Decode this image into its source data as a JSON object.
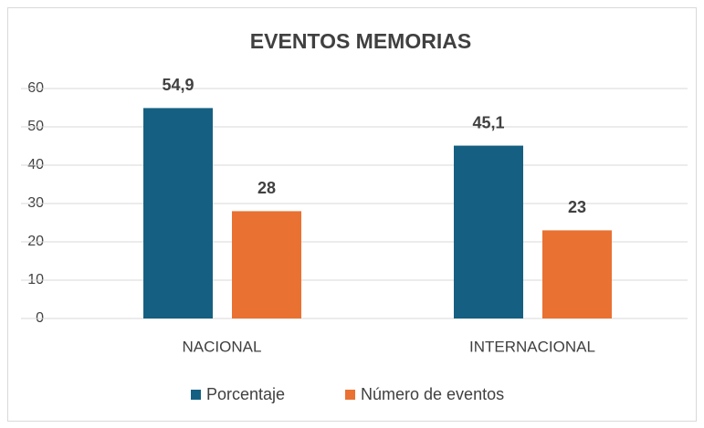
{
  "chart_data": {
    "type": "bar",
    "title": "EVENTOS MEMORIAS",
    "categories": [
      "NACIONAL",
      "INTERNACIONAL"
    ],
    "series": [
      {
        "name": "Porcentaje",
        "color": "#156082",
        "values": [
          54.9,
          45.1
        ],
        "value_labels": [
          "54,9",
          "45,1"
        ]
      },
      {
        "name": "Número de eventos",
        "color": "#e97132",
        "values": [
          28,
          23
        ]
      }
    ],
    "ylim": [
      0,
      60
    ],
    "yticks": [
      0,
      10,
      20,
      30,
      40,
      50,
      60
    ],
    "grid": true,
    "legend": "bottom"
  }
}
